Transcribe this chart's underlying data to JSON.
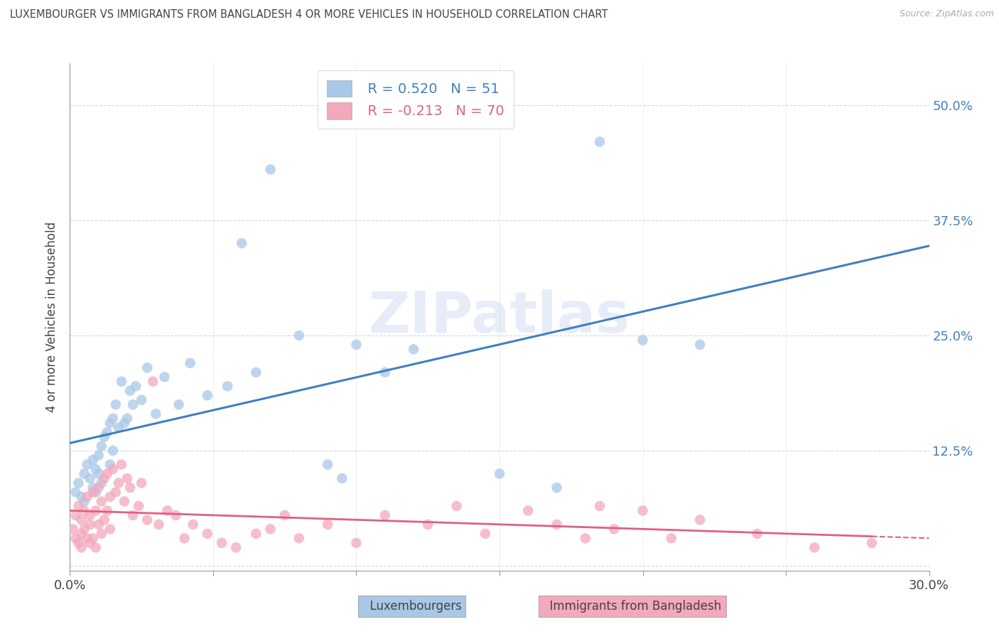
{
  "title": "LUXEMBOURGER VS IMMIGRANTS FROM BANGLADESH 4 OR MORE VEHICLES IN HOUSEHOLD CORRELATION CHART",
  "source": "Source: ZipAtlas.com",
  "ylabel": "4 or more Vehicles in Household",
  "xlim": [
    0.0,
    0.3
  ],
  "ylim": [
    -0.005,
    0.545
  ],
  "yticks": [
    0.0,
    0.125,
    0.25,
    0.375,
    0.5
  ],
  "ytick_labels": [
    "",
    "12.5%",
    "25.0%",
    "37.5%",
    "50.0%"
  ],
  "xticks": [
    0.0,
    0.05,
    0.1,
    0.15,
    0.2,
    0.25,
    0.3
  ],
  "xtick_labels": [
    "0.0%",
    "",
    "",
    "",
    "",
    "",
    "30.0%"
  ],
  "legend_blue_label": "Luxembourgers",
  "legend_pink_label": "Immigrants from Bangladesh",
  "blue_color": "#a8c8e8",
  "pink_color": "#f4a8bc",
  "blue_line_color": "#4080c0",
  "pink_line_color": "#e06080",
  "right_tick_color": "#4080c0",
  "watermark_text": "ZIPatlas",
  "background_color": "#ffffff",
  "grid_color": "#cccccc",
  "title_color": "#444444",
  "legend_r_blue": "R = 0.520",
  "legend_n_blue": "N = 51",
  "legend_r_pink": "R = -0.213",
  "legend_n_pink": "N = 70",
  "blue_scatter_x": [
    0.002,
    0.003,
    0.004,
    0.005,
    0.005,
    0.006,
    0.007,
    0.008,
    0.008,
    0.009,
    0.009,
    0.01,
    0.01,
    0.011,
    0.011,
    0.012,
    0.013,
    0.014,
    0.014,
    0.015,
    0.015,
    0.016,
    0.017,
    0.018,
    0.019,
    0.02,
    0.021,
    0.022,
    0.023,
    0.025,
    0.027,
    0.03,
    0.033,
    0.038,
    0.042,
    0.048,
    0.055,
    0.06,
    0.065,
    0.07,
    0.08,
    0.09,
    0.095,
    0.1,
    0.11,
    0.12,
    0.15,
    0.17,
    0.185,
    0.2,
    0.22
  ],
  "blue_scatter_y": [
    0.08,
    0.09,
    0.075,
    0.1,
    0.07,
    0.11,
    0.095,
    0.085,
    0.115,
    0.105,
    0.08,
    0.12,
    0.1,
    0.13,
    0.09,
    0.14,
    0.145,
    0.11,
    0.155,
    0.125,
    0.16,
    0.175,
    0.15,
    0.2,
    0.155,
    0.16,
    0.19,
    0.175,
    0.195,
    0.18,
    0.215,
    0.165,
    0.205,
    0.175,
    0.22,
    0.185,
    0.195,
    0.35,
    0.21,
    0.43,
    0.25,
    0.11,
    0.095,
    0.24,
    0.21,
    0.235,
    0.1,
    0.085,
    0.46,
    0.245,
    0.24
  ],
  "pink_scatter_x": [
    0.001,
    0.002,
    0.002,
    0.003,
    0.003,
    0.004,
    0.004,
    0.004,
    0.005,
    0.005,
    0.006,
    0.006,
    0.007,
    0.007,
    0.007,
    0.008,
    0.008,
    0.009,
    0.009,
    0.01,
    0.01,
    0.011,
    0.011,
    0.012,
    0.012,
    0.013,
    0.013,
    0.014,
    0.014,
    0.015,
    0.016,
    0.017,
    0.018,
    0.019,
    0.02,
    0.021,
    0.022,
    0.024,
    0.025,
    0.027,
    0.029,
    0.031,
    0.034,
    0.037,
    0.04,
    0.043,
    0.048,
    0.053,
    0.058,
    0.065,
    0.07,
    0.075,
    0.08,
    0.09,
    0.1,
    0.11,
    0.125,
    0.135,
    0.145,
    0.16,
    0.17,
    0.18,
    0.185,
    0.19,
    0.2,
    0.21,
    0.22,
    0.24,
    0.26,
    0.28
  ],
  "pink_scatter_y": [
    0.04,
    0.055,
    0.03,
    0.065,
    0.025,
    0.05,
    0.035,
    0.02,
    0.06,
    0.04,
    0.075,
    0.03,
    0.055,
    0.025,
    0.045,
    0.08,
    0.03,
    0.06,
    0.02,
    0.085,
    0.045,
    0.07,
    0.035,
    0.095,
    0.05,
    0.1,
    0.06,
    0.075,
    0.04,
    0.105,
    0.08,
    0.09,
    0.11,
    0.07,
    0.095,
    0.085,
    0.055,
    0.065,
    0.09,
    0.05,
    0.2,
    0.045,
    0.06,
    0.055,
    0.03,
    0.045,
    0.035,
    0.025,
    0.02,
    0.035,
    0.04,
    0.055,
    0.03,
    0.045,
    0.025,
    0.055,
    0.045,
    0.065,
    0.035,
    0.06,
    0.045,
    0.03,
    0.065,
    0.04,
    0.06,
    0.03,
    0.05,
    0.035,
    0.02,
    0.025
  ]
}
